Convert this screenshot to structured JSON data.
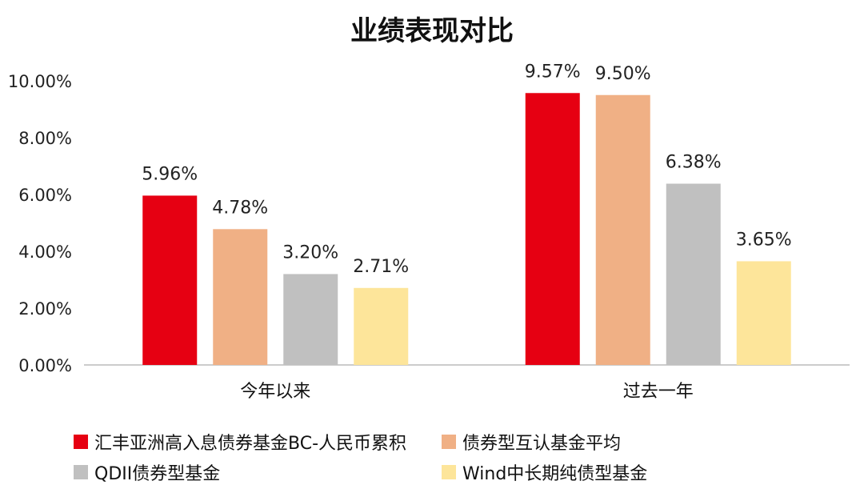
{
  "chart_data": {
    "type": "bar",
    "title": "业绩表现对比",
    "categories": [
      "今年以来",
      "过去一年"
    ],
    "series": [
      {
        "name": "汇丰亚洲高入息债券基金BC-人民币累积",
        "values": [
          5.96,
          9.57
        ],
        "labels": [
          "5.96%",
          "9.57%"
        ],
        "color": "#e60012"
      },
      {
        "name": "债券型互认基金平均",
        "values": [
          4.78,
          9.5
        ],
        "labels": [
          "4.78%",
          "9.50%"
        ],
        "color": "#f0b085"
      },
      {
        "name": "QDII债券型基金",
        "values": [
          3.2,
          6.38
        ],
        "labels": [
          "3.20%",
          "6.38%"
        ],
        "color": "#c0c0c0"
      },
      {
        "name": "Wind中长期纯债型基金",
        "values": [
          2.71,
          3.65
        ],
        "labels": [
          "2.71%",
          "3.65%"
        ],
        "color": "#fde59a"
      }
    ],
    "ylim": [
      0,
      10
    ],
    "yticks": [
      "0.00%",
      "2.00%",
      "4.00%",
      "6.00%",
      "8.00%",
      "10.00%"
    ],
    "grid": false,
    "legend_position": "bottom"
  }
}
